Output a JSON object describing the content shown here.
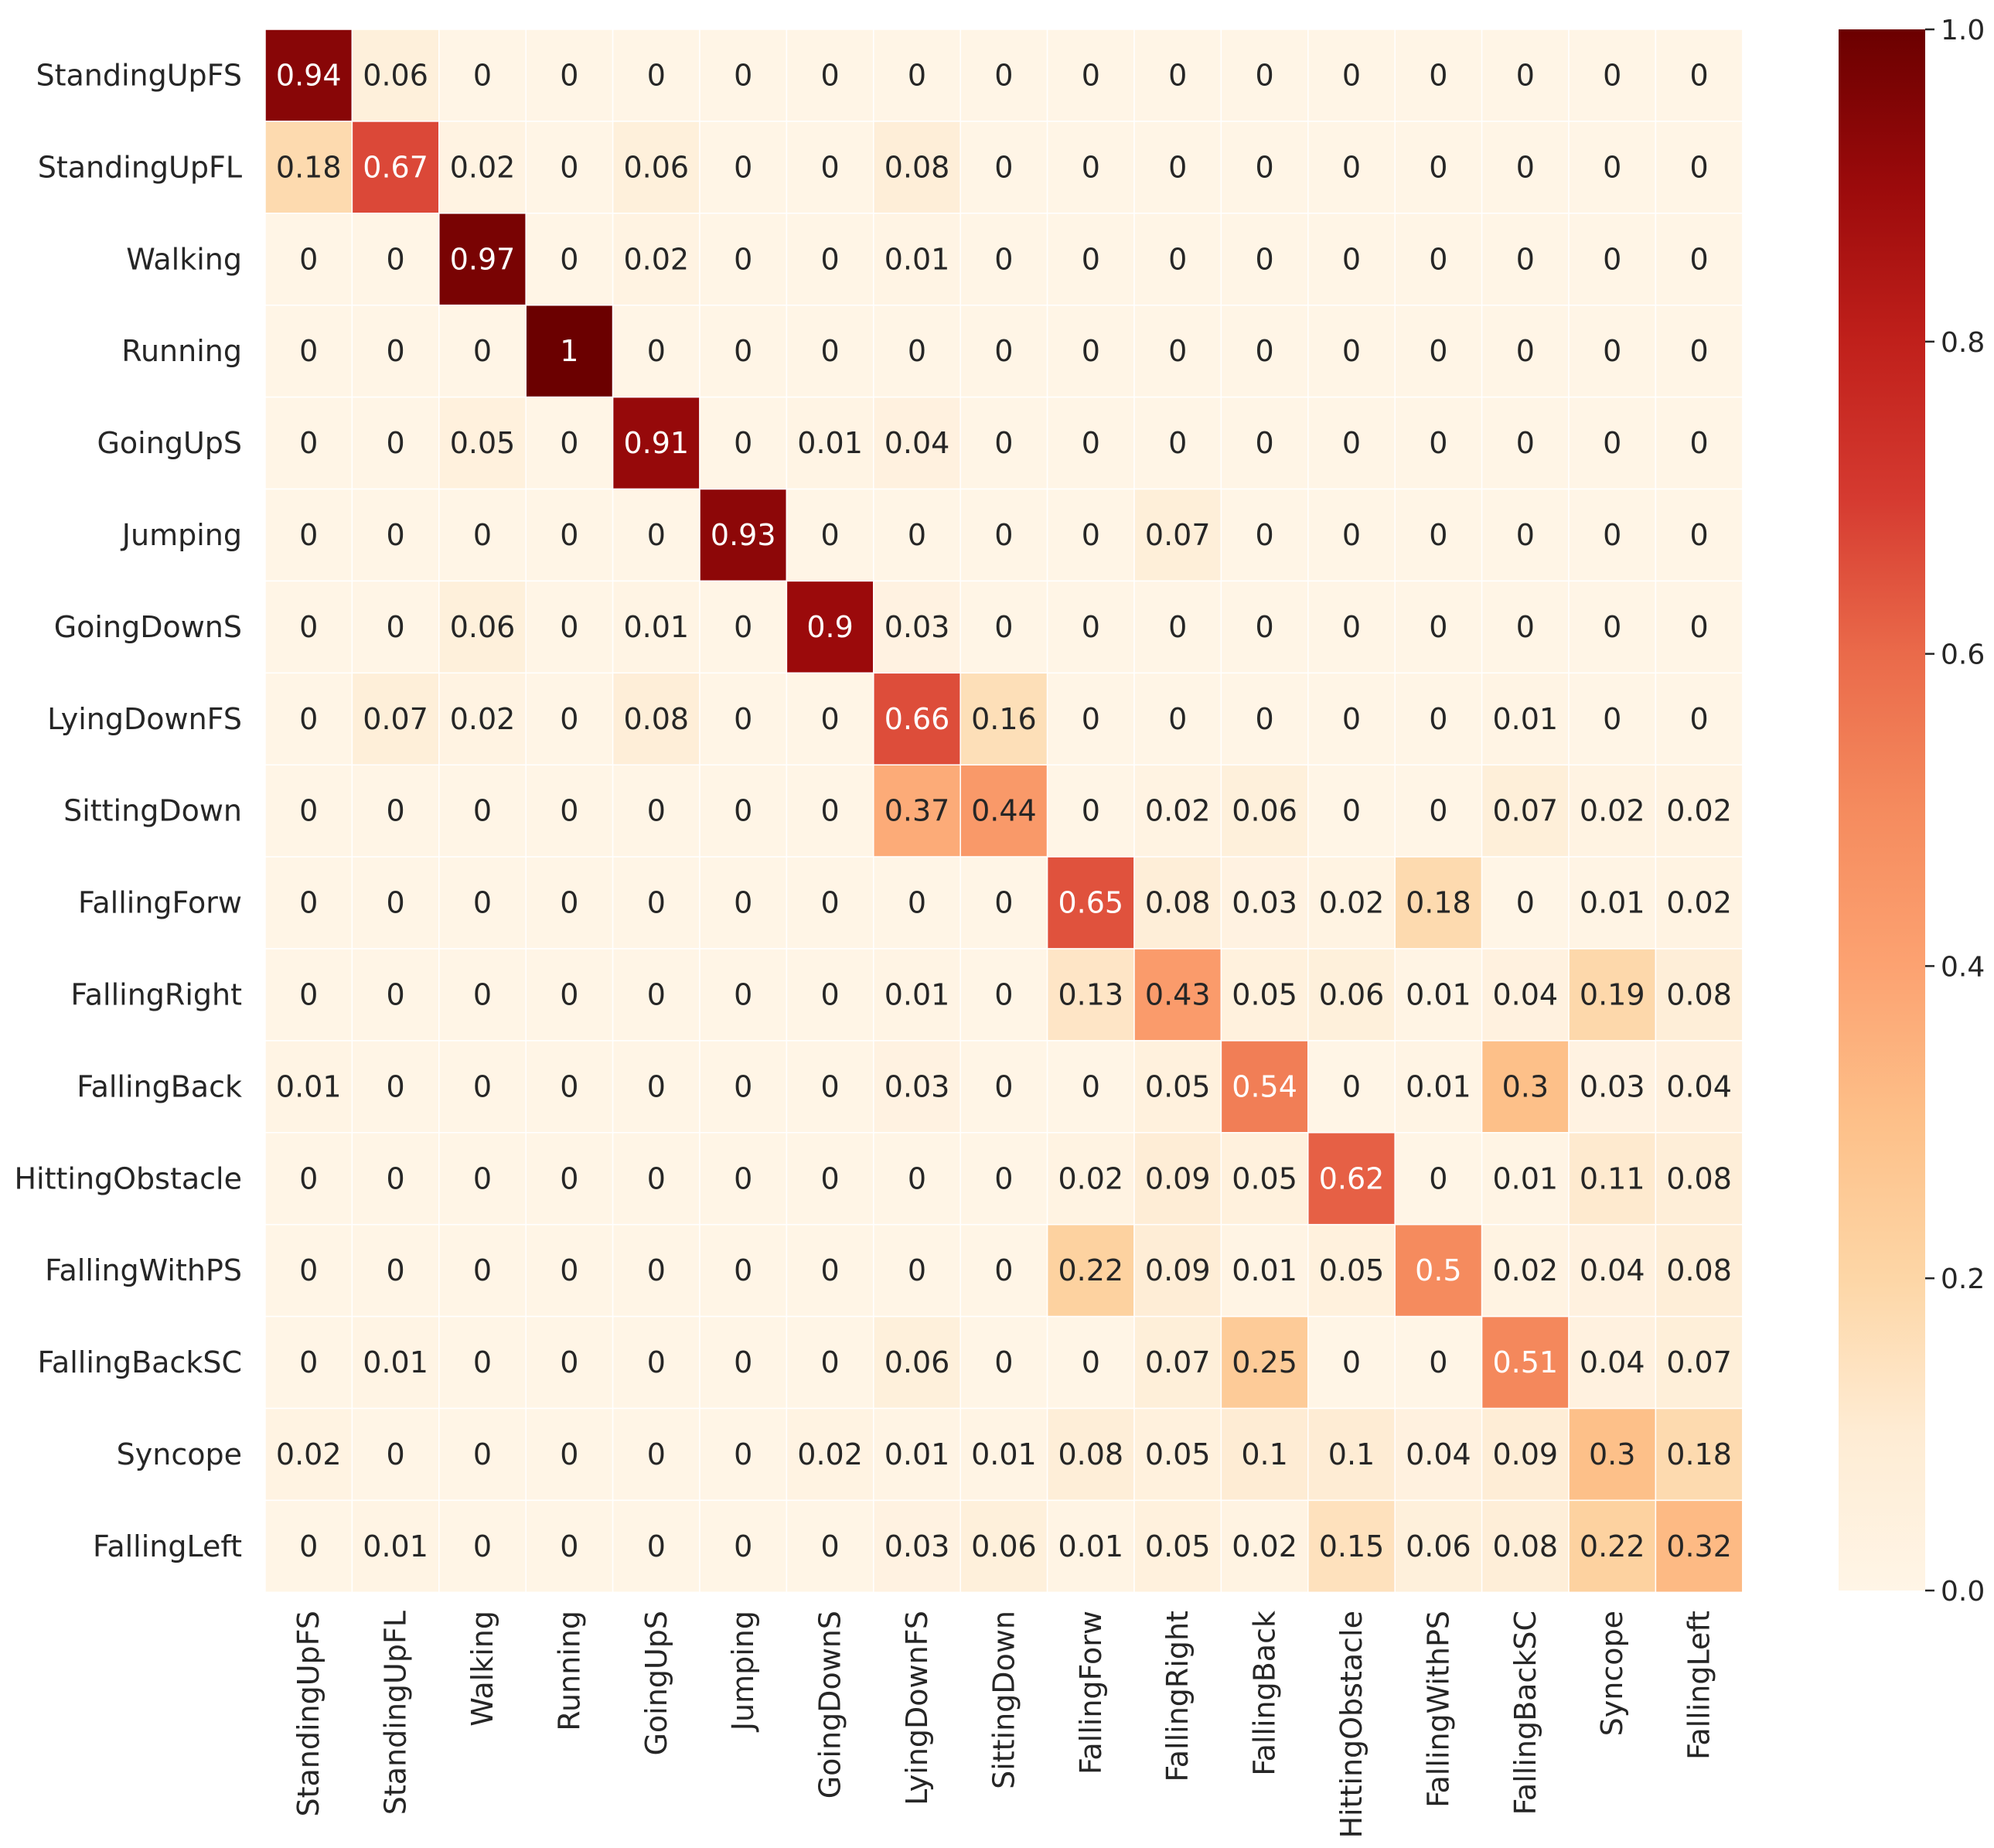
{
  "chart_data": {
    "type": "heatmap",
    "title": "",
    "colormap": "OrRd-like (light cream to dark red)",
    "rows": [
      "StandingUpFS",
      "StandingUpFL",
      "Walking",
      "Running",
      "GoingUpS",
      "Jumping",
      "GoingDownS",
      "LyingDownFS",
      "SittingDown",
      "FallingForw",
      "FallingRight",
      "FallingBack",
      "HittingObstacle",
      "FallingWithPS",
      "FallingBackSC",
      "Syncope",
      "FallingLeft"
    ],
    "columns": [
      "StandingUpFS",
      "StandingUpFL",
      "Walking",
      "Running",
      "GoingUpS",
      "Jumping",
      "GoingDownS",
      "LyingDownFS",
      "SittingDown",
      "FallingForw",
      "FallingRight",
      "FallingBack",
      "HittingObstacle",
      "FallingWithPS",
      "FallingBackSC",
      "Syncope",
      "FallingLeft"
    ],
    "values": [
      [
        "0.94",
        "0.06",
        "0",
        "0",
        "0",
        "0",
        "0",
        "0",
        "0",
        "0",
        "0",
        "0",
        "0",
        "0",
        "0",
        "0",
        "0"
      ],
      [
        "0.18",
        "0.67",
        "0.02",
        "0",
        "0.06",
        "0",
        "0",
        "0.08",
        "0",
        "0",
        "0",
        "0",
        "0",
        "0",
        "0",
        "0",
        "0"
      ],
      [
        "0",
        "0",
        "0.97",
        "0",
        "0.02",
        "0",
        "0",
        "0.01",
        "0",
        "0",
        "0",
        "0",
        "0",
        "0",
        "0",
        "0",
        "0"
      ],
      [
        "0",
        "0",
        "0",
        "1",
        "0",
        "0",
        "0",
        "0",
        "0",
        "0",
        "0",
        "0",
        "0",
        "0",
        "0",
        "0",
        "0"
      ],
      [
        "0",
        "0",
        "0.05",
        "0",
        "0.91",
        "0",
        "0.01",
        "0.04",
        "0",
        "0",
        "0",
        "0",
        "0",
        "0",
        "0",
        "0",
        "0"
      ],
      [
        "0",
        "0",
        "0",
        "0",
        "0",
        "0.93",
        "0",
        "0",
        "0",
        "0",
        "0.07",
        "0",
        "0",
        "0",
        "0",
        "0",
        "0"
      ],
      [
        "0",
        "0",
        "0.06",
        "0",
        "0.01",
        "0",
        "0.9",
        "0.03",
        "0",
        "0",
        "0",
        "0",
        "0",
        "0",
        "0",
        "0",
        "0"
      ],
      [
        "0",
        "0.07",
        "0.02",
        "0",
        "0.08",
        "0",
        "0",
        "0.66",
        "0.16",
        "0",
        "0",
        "0",
        "0",
        "0",
        "0.01",
        "0",
        "0"
      ],
      [
        "0",
        "0",
        "0",
        "0",
        "0",
        "0",
        "0",
        "0.37",
        "0.44",
        "0",
        "0.02",
        "0.06",
        "0",
        "0",
        "0.07",
        "0.02",
        "0.02"
      ],
      [
        "0",
        "0",
        "0",
        "0",
        "0",
        "0",
        "0",
        "0",
        "0",
        "0.65",
        "0.08",
        "0.03",
        "0.02",
        "0.18",
        "0",
        "0.01",
        "0.02"
      ],
      [
        "0",
        "0",
        "0",
        "0",
        "0",
        "0",
        "0",
        "0.01",
        "0",
        "0.13",
        "0.43",
        "0.05",
        "0.06",
        "0.01",
        "0.04",
        "0.19",
        "0.08"
      ],
      [
        "0.01",
        "0",
        "0",
        "0",
        "0",
        "0",
        "0",
        "0.03",
        "0",
        "0",
        "0.05",
        "0.54",
        "0",
        "0.01",
        "0.3",
        "0.03",
        "0.04"
      ],
      [
        "0",
        "0",
        "0",
        "0",
        "0",
        "0",
        "0",
        "0",
        "0",
        "0.02",
        "0.09",
        "0.05",
        "0.62",
        "0",
        "0.01",
        "0.11",
        "0.08"
      ],
      [
        "0",
        "0",
        "0",
        "0",
        "0",
        "0",
        "0",
        "0",
        "0",
        "0.22",
        "0.09",
        "0.01",
        "0.05",
        "0.5",
        "0.02",
        "0.04",
        "0.08"
      ],
      [
        "0",
        "0.01",
        "0",
        "0",
        "0",
        "0",
        "0",
        "0.06",
        "0",
        "0",
        "0.07",
        "0.25",
        "0",
        "0",
        "0.51",
        "0.04",
        "0.07"
      ],
      [
        "0.02",
        "0",
        "0",
        "0",
        "0",
        "0",
        "0.02",
        "0.01",
        "0.01",
        "0.08",
        "0.05",
        "0.1",
        "0.1",
        "0.04",
        "0.09",
        "0.3",
        "0.18"
      ],
      [
        "0",
        "0.01",
        "0",
        "0",
        "0",
        "0",
        "0",
        "0.03",
        "0.06",
        "0.01",
        "0.05",
        "0.02",
        "0.15",
        "0.06",
        "0.08",
        "0.22",
        "0.32"
      ]
    ],
    "colorbar": {
      "range": [
        0.0,
        1.0
      ],
      "ticks": [
        "0.0",
        "0.2",
        "0.4",
        "0.6",
        "0.8",
        "1.0"
      ]
    },
    "xlabel": "",
    "ylabel": ""
  }
}
